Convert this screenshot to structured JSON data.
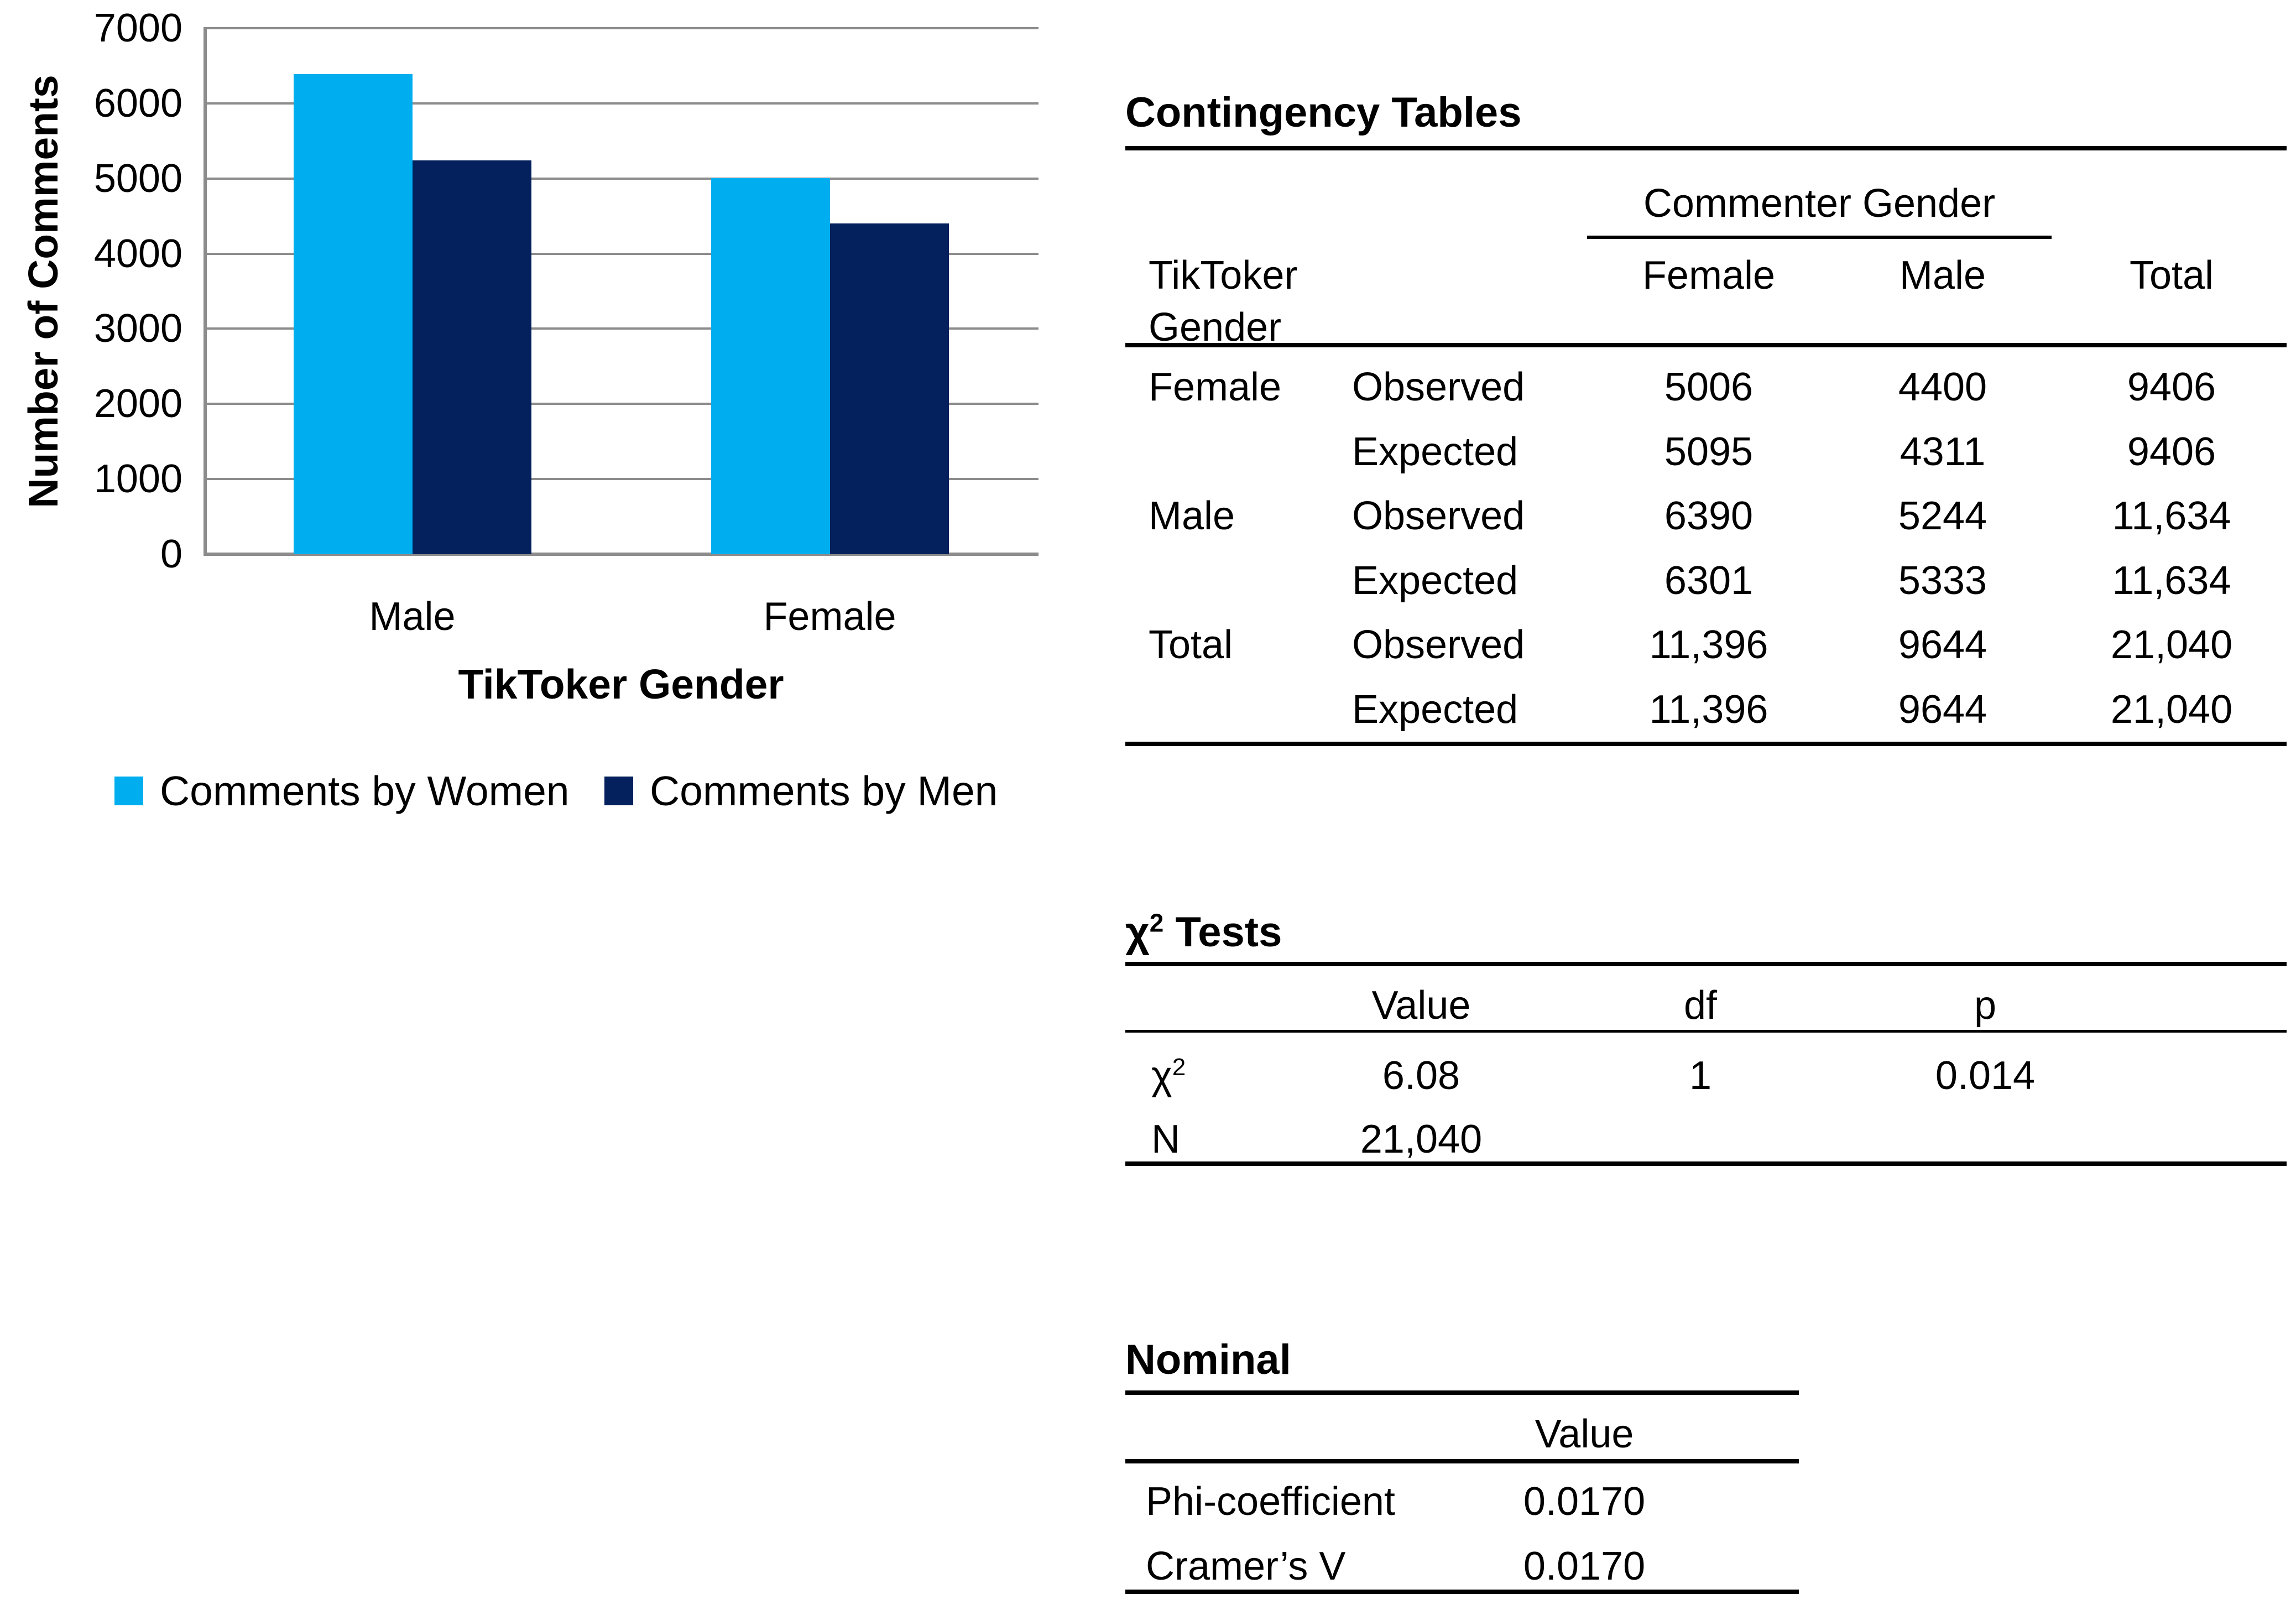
{
  "chart_data": {
    "type": "bar",
    "title": "",
    "categories": [
      "Male",
      "Female"
    ],
    "series": [
      {
        "name": "Comments by Women",
        "color": "#00AEEF",
        "values": [
          6390,
          5006
        ]
      },
      {
        "name": "Comments by Men",
        "color": "#04215E",
        "values": [
          5244,
          4400
        ]
      }
    ],
    "xlabel": "TikToker Gender",
    "ylabel": "Number of Comments",
    "ylim": [
      0,
      7000
    ],
    "ytick_step": 1000,
    "y_tick_labels": [
      "7000",
      "6000",
      "5000",
      "4000",
      "3000",
      "2000",
      "1000",
      "0"
    ],
    "grid": true,
    "gridline_color": "#8C8C8C",
    "legend_position": "bottom"
  },
  "contingency": {
    "title": "Contingency Tables",
    "span_header": "Commenter Gender",
    "row_header_line1": "TikToker",
    "row_header_line2": "Gender",
    "col_female": "Female",
    "col_male": "Male",
    "col_total": "Total",
    "rows": [
      {
        "label": "Female",
        "type": "Observed",
        "female": "5006",
        "male": "4400",
        "total": "9406"
      },
      {
        "label": "",
        "type": "Expected",
        "female": "5095",
        "male": "4311",
        "total": "9406"
      },
      {
        "label": "Male",
        "type": "Observed",
        "female": "6390",
        "male": "5244",
        "total": "11,634"
      },
      {
        "label": "",
        "type": "Expected",
        "female": "6301",
        "male": "5333",
        "total": "11,634"
      },
      {
        "label": "Total",
        "type": "Observed",
        "female": "11,396",
        "male": "9644",
        "total": "21,040"
      },
      {
        "label": "",
        "type": "Expected",
        "female": "11,396",
        "male": "9644",
        "total": "21,040"
      }
    ]
  },
  "chi2": {
    "title_chi": "χ",
    "title_sup": "2",
    "title_rest": " Tests",
    "col_value": "Value",
    "col_df": "df",
    "col_p": "p",
    "row1": {
      "label_chi": "χ",
      "label_sup": "2",
      "value": "6.08",
      "df": "1",
      "p": "0.014"
    },
    "row2": {
      "label": "N",
      "value": "21,040"
    }
  },
  "nominal": {
    "title": "Nominal",
    "col_value": "Value",
    "rows": [
      {
        "label": "Phi-coefficient",
        "value": "0.0170"
      },
      {
        "label": "Cramer’s V",
        "value": "0.0170"
      }
    ]
  }
}
